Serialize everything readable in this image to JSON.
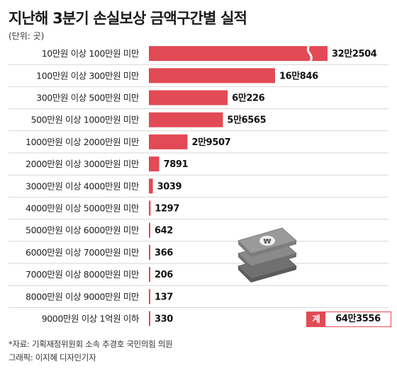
{
  "chart_data": {
    "type": "bar",
    "orientation": "horizontal",
    "title": "지난해 3분기 손실보상 금액구간별 실적",
    "unit_label": "(단위: 곳)",
    "categories": [
      "10만원 이상 100만원 미만",
      "100만원 이상 300만원 미만",
      "300만원 이상 500만원 미만",
      "500만원 이상 1000만원 미만",
      "1000만원 이상 2000만원 미만",
      "2000만원 이상 3000만원 미만",
      "3000만원 이상 4000만원 미만",
      "4000만원 이상 5000만원 미만",
      "5000만원 이상 6000만원 미만",
      "6000만원 이상 7000만원 미만",
      "7000만원 이상 8000만원 미만",
      "8000만원 이상 9000만원 미만",
      "9000만원 이상 1억원 이하"
    ],
    "values": [
      322504,
      160846,
      60226,
      56565,
      29507,
      7891,
      3039,
      1297,
      642,
      366,
      206,
      137,
      330
    ],
    "value_labels": [
      "32만2504",
      "16만846",
      "6만226",
      "5만6565",
      "2만9507",
      "7891",
      "3039",
      "1297",
      "642",
      "366",
      "206",
      "137",
      "330"
    ],
    "broken_bar_index": 0,
    "total_label": "계",
    "total_value": "64만3556",
    "bar_color": "#e24a55",
    "source": "*자료: 기획재정위원회 소속 추경호 국민의힘 의원",
    "credit": "그래픽: 이지혜 디자인기자"
  }
}
